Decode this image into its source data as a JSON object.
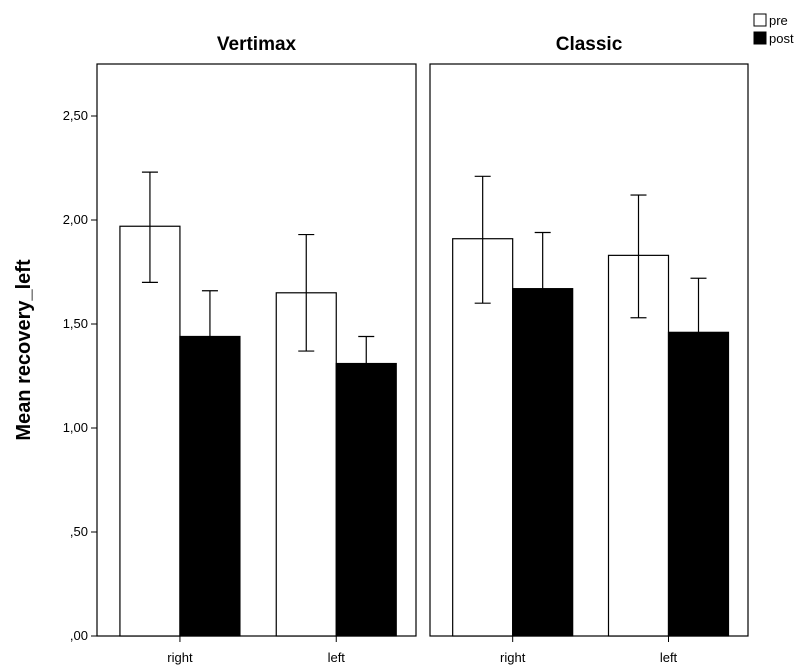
{
  "chart_data": {
    "type": "bar",
    "ylabel": "Mean recovery_left",
    "ylim": [
      0,
      2.75
    ],
    "yticks": [
      ",00",
      ",50",
      "1,00",
      "1,50",
      "2,00",
      "2,50"
    ],
    "ytick_values": [
      0,
      0.5,
      1.0,
      1.5,
      2.0,
      2.5
    ],
    "legend": [
      {
        "name": "pre",
        "color": "#ffffff"
      },
      {
        "name": "post",
        "color": "#000000"
      }
    ],
    "legend_position": "top-right",
    "grid": false,
    "panels": [
      {
        "title": "Vertimax",
        "categories": [
          "right",
          "left"
        ],
        "series": [
          {
            "name": "pre",
            "values": [
              1.97,
              1.65
            ],
            "err_low": [
              1.7,
              1.37
            ],
            "err_high": [
              2.23,
              1.93
            ]
          },
          {
            "name": "post",
            "values": [
              1.44,
              1.31
            ],
            "err_low": [
              1.21,
              1.16
            ],
            "err_high": [
              1.66,
              1.44
            ]
          }
        ]
      },
      {
        "title": "Classic",
        "categories": [
          "right",
          "left"
        ],
        "series": [
          {
            "name": "pre",
            "values": [
              1.91,
              1.83
            ],
            "err_low": [
              1.6,
              1.53
            ],
            "err_high": [
              2.21,
              2.12
            ]
          },
          {
            "name": "post",
            "values": [
              1.67,
              1.46
            ],
            "err_low": [
              1.38,
              1.2
            ],
            "err_high": [
              1.94,
              1.72
            ]
          }
        ]
      }
    ]
  }
}
